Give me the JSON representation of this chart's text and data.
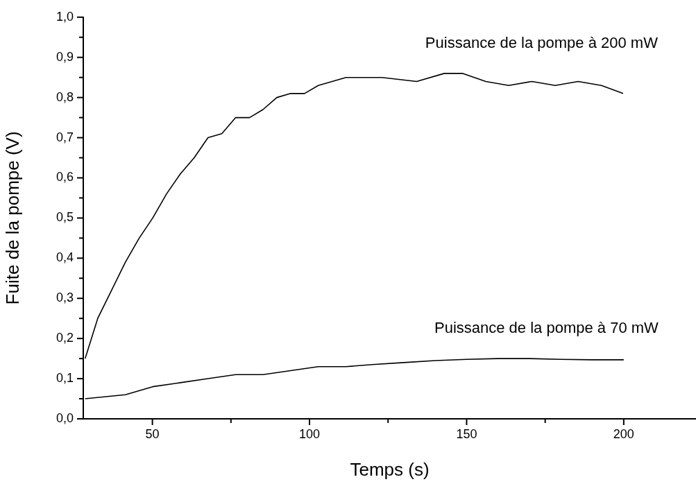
{
  "chart_data": {
    "type": "line",
    "xlabel": "Temps (s)",
    "ylabel": "Fuite de la pompe (V)",
    "xlim": [
      28,
      223
    ],
    "ylim": [
      0,
      1
    ],
    "xticks": [
      50,
      {
        "value": 75,
        "label": null
      },
      100,
      {
        "value": 125,
        "label": null
      },
      150,
      {
        "value": 175,
        "label": null
      },
      200
    ],
    "yticks": [
      {
        "value": 0,
        "label": "0,0"
      },
      {
        "value": 0.05,
        "label": null
      },
      {
        "value": 0.1,
        "label": "0,1"
      },
      {
        "value": 0.15,
        "label": null
      },
      {
        "value": 0.2,
        "label": "0,2"
      },
      {
        "value": 0.25,
        "label": null
      },
      {
        "value": 0.3,
        "label": "0,3"
      },
      {
        "value": 0.35,
        "label": null
      },
      {
        "value": 0.4,
        "label": "0,4"
      },
      {
        "value": 0.45,
        "label": null
      },
      {
        "value": 0.5,
        "label": "0,5"
      },
      {
        "value": 0.55,
        "label": null
      },
      {
        "value": 0.6,
        "label": "0,6"
      },
      {
        "value": 0.65,
        "label": null
      },
      {
        "value": 0.7,
        "label": "0,7"
      },
      {
        "value": 0.75,
        "label": null
      },
      {
        "value": 0.8,
        "label": "0,8"
      },
      {
        "value": 0.85,
        "label": null
      },
      {
        "value": 0.9,
        "label": "0,9"
      },
      {
        "value": 0.95,
        "label": null
      },
      {
        "value": 1,
        "label": "1,0"
      }
    ],
    "grid": false,
    "legend": false,
    "marker": "none",
    "line_style": "solid",
    "series": [
      {
        "name": "Puissance de la pompe à 200 mW",
        "color": "#000000",
        "x": [
          28.6,
          32.6,
          37,
          41.4,
          45.8,
          50.1,
          54.5,
          58.9,
          63.3,
          67.7,
          72.1,
          76.5,
          80.9,
          85.2,
          89.6,
          94,
          98.4,
          102.8,
          107.2,
          111.6,
          120.4,
          123.1,
          134.1,
          142.9,
          148.8,
          156.1,
          163.4,
          170.8,
          178.2,
          185.5,
          192.9,
          199.8
        ],
        "values": [
          0.15,
          0.25,
          0.32,
          0.39,
          0.45,
          0.5,
          0.56,
          0.61,
          0.65,
          0.7,
          0.71,
          0.75,
          0.75,
          0.77,
          0.8,
          0.81,
          0.81,
          0.83,
          0.84,
          0.85,
          0.85,
          0.85,
          0.84,
          0.86,
          0.86,
          0.84,
          0.83,
          0.84,
          0.83,
          0.84,
          0.83,
          0.81
        ]
      },
      {
        "name": "Puissance de la pompe à 70 mW",
        "color": "#000000",
        "x": [
          28.6,
          41.4,
          50.1,
          58.9,
          67.7,
          76.5,
          85.2,
          94,
          102.8,
          111.6,
          120,
          130,
          140,
          150,
          160,
          170,
          180,
          190,
          200
        ],
        "values": [
          0.05,
          0.06,
          0.08,
          0.09,
          0.1,
          0.11,
          0.11,
          0.12,
          0.13,
          0.13,
          0.135,
          0.14,
          0.145,
          0.148,
          0.15,
          0.15,
          0.148,
          0.147,
          0.147
        ]
      }
    ]
  }
}
